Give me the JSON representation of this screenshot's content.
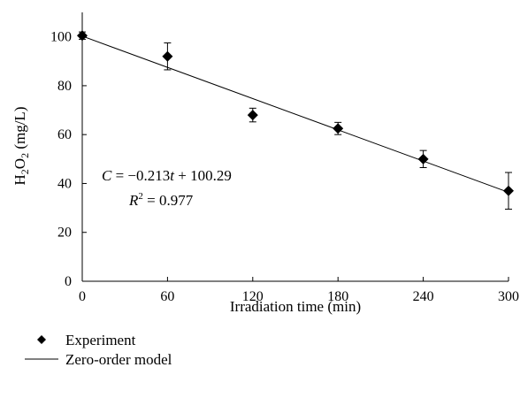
{
  "chart_data": {
    "type": "scatter",
    "title": "",
    "xlabel": "Irradiation time (min)",
    "ylabel": "H₂O₂ (mg/L)",
    "xlim": [
      0,
      300
    ],
    "ylim": [
      0,
      110
    ],
    "xticks": [
      0,
      60,
      120,
      180,
      240,
      300
    ],
    "yticks": [
      0,
      20,
      40,
      60,
      80,
      100
    ],
    "grid": false,
    "legend_position": "bottom-left",
    "series": [
      {
        "name": "Experiment",
        "marker": "diamond",
        "color": "#000000",
        "x": [
          0,
          60,
          120,
          180,
          240,
          300
        ],
        "y": [
          100.5,
          92,
          68,
          62.5,
          50,
          37
        ],
        "error": [
          1.5,
          5.5,
          2.8,
          2.5,
          3.5,
          7.5
        ]
      },
      {
        "name": "Zero-order model",
        "type": "line",
        "color": "#000000",
        "slope": -0.213,
        "intercept": 100.29
      }
    ],
    "annotations": {
      "equation": "C = −0.213t + 100.29",
      "r2": "R2 = 0.977"
    }
  }
}
